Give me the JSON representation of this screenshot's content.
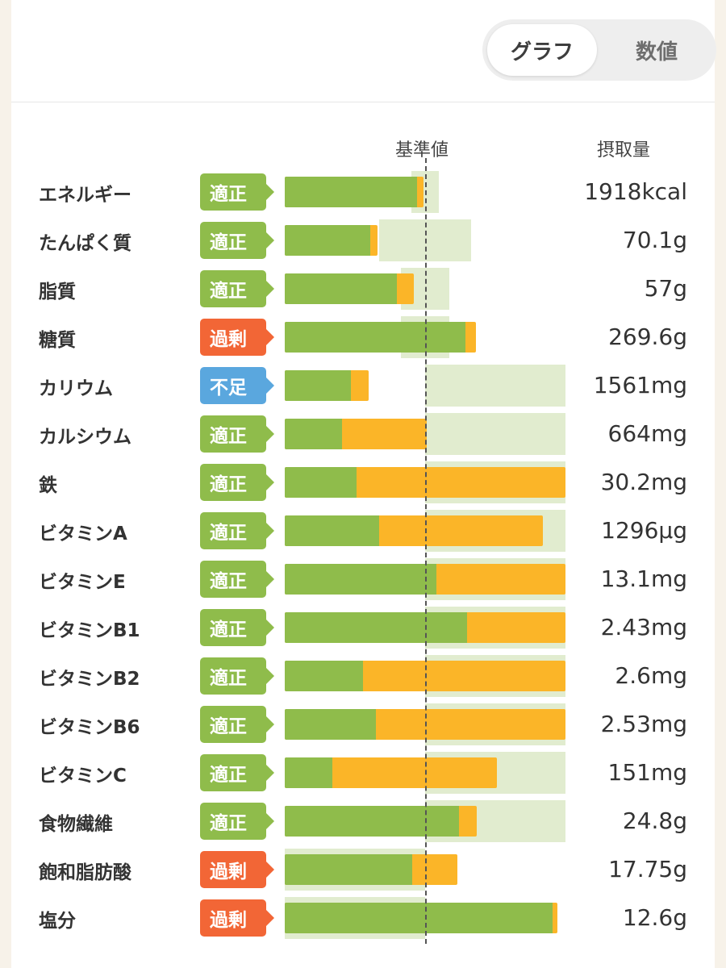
{
  "toggle": {
    "graph_label": "グラフ",
    "numeric_label": "数値",
    "selected": "グラフ"
  },
  "header": {
    "reference_label": "基準値",
    "intake_label": "摂取量"
  },
  "colors": {
    "green": "#8fbc4b",
    "orange": "#fbb528",
    "range": "#e1eccf",
    "ok": "#8fbc4b",
    "over": "#f26636",
    "under": "#5aa7de"
  },
  "rows": [
    {
      "name": "エネルギー",
      "status": "適正",
      "status_type": "ok",
      "value": "1918kcal",
      "green_pct": 94,
      "total_pct": 99,
      "range_from_pct": 90,
      "range_to_pct": 110
    },
    {
      "name": "たんぱく質",
      "status": "適正",
      "status_type": "ok",
      "value": "70.1g",
      "green_pct": 61,
      "total_pct": 66,
      "range_from_pct": 67,
      "range_to_pct": 133
    },
    {
      "name": "脂質",
      "status": "適正",
      "status_type": "ok",
      "value": "57g",
      "green_pct": 80,
      "total_pct": 92,
      "range_from_pct": 83,
      "range_to_pct": 117
    },
    {
      "name": "糖質",
      "status": "過剰",
      "status_type": "over",
      "value": "269.6g",
      "green_pct": 129,
      "total_pct": 136,
      "range_from_pct": 83,
      "range_to_pct": 117
    },
    {
      "name": "カリウム",
      "status": "不足",
      "status_type": "under",
      "value": "1561mg",
      "green_pct": 47,
      "total_pct": 60,
      "range_from_pct": 100,
      "range_to_pct": 200
    },
    {
      "name": "カルシウム",
      "status": "適正",
      "status_type": "ok",
      "value": "664mg",
      "green_pct": 41,
      "total_pct": 101,
      "range_from_pct": 100,
      "range_to_pct": 200
    },
    {
      "name": "鉄",
      "status": "適正",
      "status_type": "ok",
      "value": "30.2mg",
      "green_pct": 51,
      "total_pct": 200,
      "range_from_pct": 100,
      "range_to_pct": 200
    },
    {
      "name": "ビタミンA",
      "status": "適正",
      "status_type": "ok",
      "value": "1296μg",
      "green_pct": 67,
      "total_pct": 184,
      "range_from_pct": 100,
      "range_to_pct": 200
    },
    {
      "name": "ビタミンE",
      "status": "適正",
      "status_type": "ok",
      "value": "13.1mg",
      "green_pct": 108,
      "total_pct": 200,
      "range_from_pct": 100,
      "range_to_pct": 200
    },
    {
      "name": "ビタミンB1",
      "status": "適正",
      "status_type": "ok",
      "value": "2.43mg",
      "green_pct": 130,
      "total_pct": 200,
      "range_from_pct": 100,
      "range_to_pct": 200
    },
    {
      "name": "ビタミンB2",
      "status": "適正",
      "status_type": "ok",
      "value": "2.6mg",
      "green_pct": 56,
      "total_pct": 200,
      "range_from_pct": 100,
      "range_to_pct": 200
    },
    {
      "name": "ビタミンB6",
      "status": "適正",
      "status_type": "ok",
      "value": "2.53mg",
      "green_pct": 65,
      "total_pct": 200,
      "range_from_pct": 100,
      "range_to_pct": 200
    },
    {
      "name": "ビタミンC",
      "status": "適正",
      "status_type": "ok",
      "value": "151mg",
      "green_pct": 34,
      "total_pct": 151,
      "range_from_pct": 100,
      "range_to_pct": 200
    },
    {
      "name": "食物繊維",
      "status": "適正",
      "status_type": "ok",
      "value": "24.8g",
      "green_pct": 124,
      "total_pct": 137,
      "range_from_pct": 100,
      "range_to_pct": 200
    },
    {
      "name": "飽和脂肪酸",
      "status": "過剰",
      "status_type": "over",
      "value": "17.75g",
      "green_pct": 91,
      "total_pct": 123,
      "range_from_pct": 0,
      "range_to_pct": 100
    },
    {
      "name": "塩分",
      "status": "過剰",
      "status_type": "over",
      "value": "12.6g",
      "green_pct": 191,
      "total_pct": 194,
      "range_from_pct": 0,
      "range_to_pct": 100
    }
  ]
}
